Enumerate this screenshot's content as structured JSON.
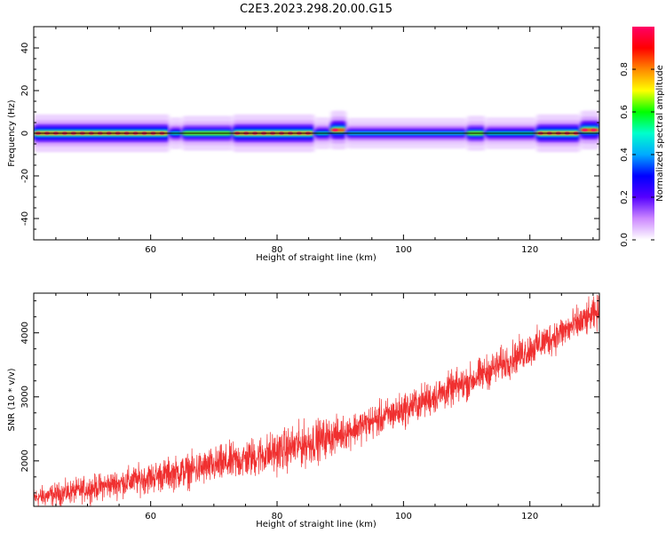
{
  "figure": {
    "title": "C2E3.2023.298.20.00.G15"
  },
  "chart_data": [
    {
      "type": "heatmap",
      "xlabel": "Height of straight line (km)",
      "ylabel": "Frequency (Hz)",
      "xlim": [
        41.5,
        131
      ],
      "ylim": [
        -50,
        50
      ],
      "xticks": [
        60,
        80,
        100,
        120
      ],
      "yticks": [
        -40,
        -20,
        0,
        20,
        40
      ],
      "colorbar": {
        "label": "Normalized spectral amplitude",
        "range": [
          0,
          1
        ],
        "ticks": [
          0.0,
          0.2,
          0.4,
          0.6,
          0.8
        ],
        "tick_labels": [
          "0.0",
          "0.2",
          "0.4",
          "0.6",
          "0.8"
        ],
        "colors": [
          "#ffffff",
          "#cc88ff",
          "#5500ff",
          "#0000ff",
          "#00aaff",
          "#00ffcc",
          "#00ff00",
          "#ffff00",
          "#ff8800",
          "#ff0000",
          "#ff0066"
        ]
      },
      "bands": [
        {
          "x": [
            41.5,
            63
          ],
          "center": 0,
          "level": 0.85
        },
        {
          "x": [
            63,
            65
          ],
          "center": 0,
          "level": 0.55
        },
        {
          "x": [
            65,
            73
          ],
          "center": 0,
          "level": 0.7
        },
        {
          "x": [
            73,
            86
          ],
          "center": 0,
          "level": 0.85
        },
        {
          "x": [
            86,
            88.5
          ],
          "center": 0,
          "level": 0.55
        },
        {
          "x": [
            88.5,
            91
          ],
          "center": 1.5,
          "level": 0.9
        },
        {
          "x": [
            91,
            110
          ],
          "center": 0,
          "level": 0.5
        },
        {
          "x": [
            110,
            113
          ],
          "center": 0,
          "level": 0.7
        },
        {
          "x": [
            113,
            121
          ],
          "center": 0,
          "level": 0.55
        },
        {
          "x": [
            121,
            128
          ],
          "center": 0,
          "level": 0.85
        },
        {
          "x": [
            128,
            131
          ],
          "center": 1.5,
          "level": 0.9
        }
      ],
      "line": {
        "y": 0
      }
    },
    {
      "type": "line",
      "xlabel": "Height of straight line (km)",
      "ylabel": "SNR (10 * v/v)",
      "xlim": [
        41.5,
        131
      ],
      "ylim": [
        1290,
        4620
      ],
      "xticks": [
        60,
        80,
        100,
        120
      ],
      "yticks": [
        2000,
        3000,
        4000
      ],
      "color": "#f03030",
      "trend": {
        "x": [
          41.5,
          50,
          60,
          70,
          80,
          90,
          100,
          110,
          120,
          131
        ],
        "y": [
          1420,
          1560,
          1740,
          1920,
          2140,
          2420,
          2800,
          3220,
          3740,
          4320
        ]
      },
      "noise_amplitude": [
        [
          41.5,
          120
        ],
        [
          85,
          260
        ],
        [
          90,
          200
        ],
        [
          131,
          200
        ]
      ]
    }
  ]
}
